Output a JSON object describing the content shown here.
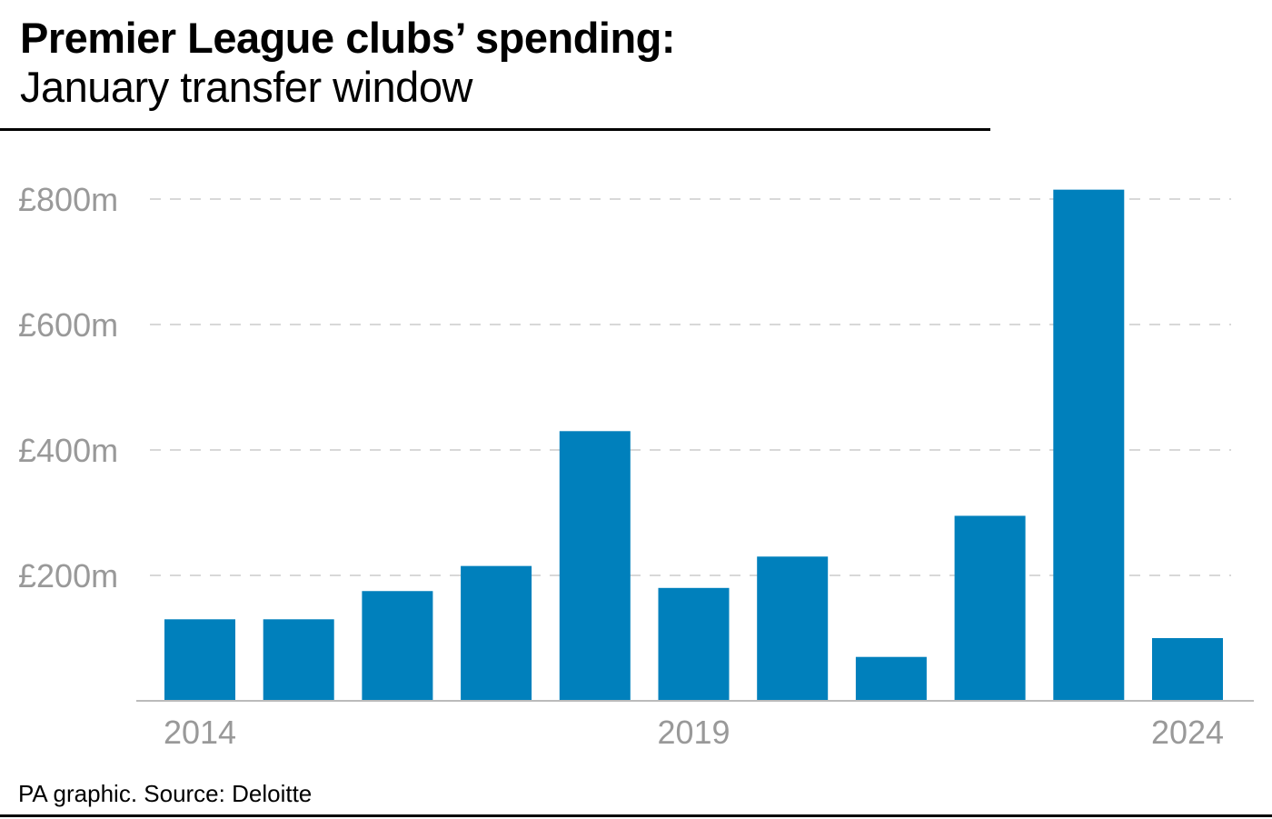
{
  "title": "Premier League clubs’ spending:",
  "subtitle": "January transfer window",
  "source": "PA graphic. Source: Deloitte",
  "chart_data": {
    "type": "bar",
    "categories": [
      "2014",
      "2015",
      "2016",
      "2017",
      "2018",
      "2019",
      "2020",
      "2021",
      "2022",
      "2023",
      "2024"
    ],
    "values": [
      130,
      130,
      175,
      215,
      430,
      180,
      230,
      70,
      295,
      815,
      100
    ],
    "unit": "£m",
    "ylim": [
      0,
      800
    ],
    "yticks": [
      200,
      400,
      600,
      800
    ],
    "ytick_labels": [
      "£200m",
      "£400m",
      "£600m",
      "£800m"
    ],
    "xtick_labels": [
      "2014",
      "2019",
      "2024"
    ],
    "grid": true,
    "bar_color": "#0080bc"
  }
}
